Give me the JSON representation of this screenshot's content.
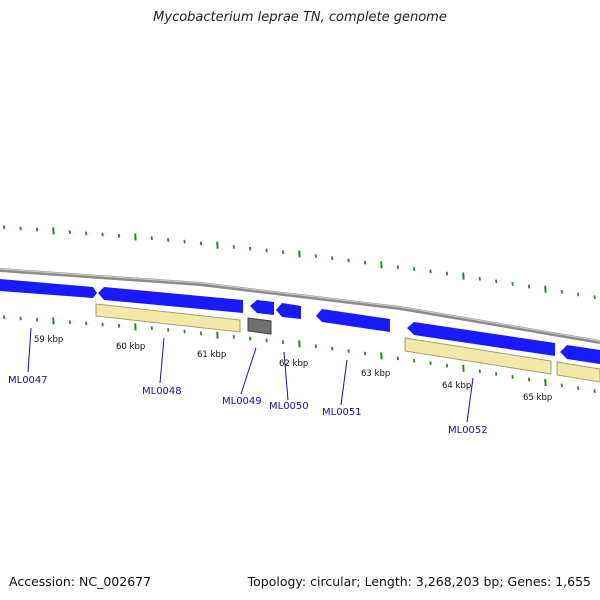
{
  "title": "Mycobacterium leprae TN, complete genome",
  "footer": {
    "accession": "Accession: NC_002677",
    "summary": "Topology: circular; Length: 3,268,203 bp; Genes: 1,655"
  },
  "colors": {
    "backbone": "#8c8c8c",
    "cds": "#1a1aff",
    "gene_pale": "#f2e9a8",
    "gene_gray": "#707070",
    "ticks": "#1e8c1e",
    "label": "#1414a0"
  },
  "kbp_labels": [
    "59 kbp",
    "60 kbp",
    "61 kbp",
    "62 kbp",
    "63 kbp",
    "64 kbp",
    "65 kbp"
  ],
  "gene_labels": [
    "ML0047",
    "ML0048",
    "ML0049",
    "ML0050",
    "ML0051",
    "ML0052"
  ]
}
